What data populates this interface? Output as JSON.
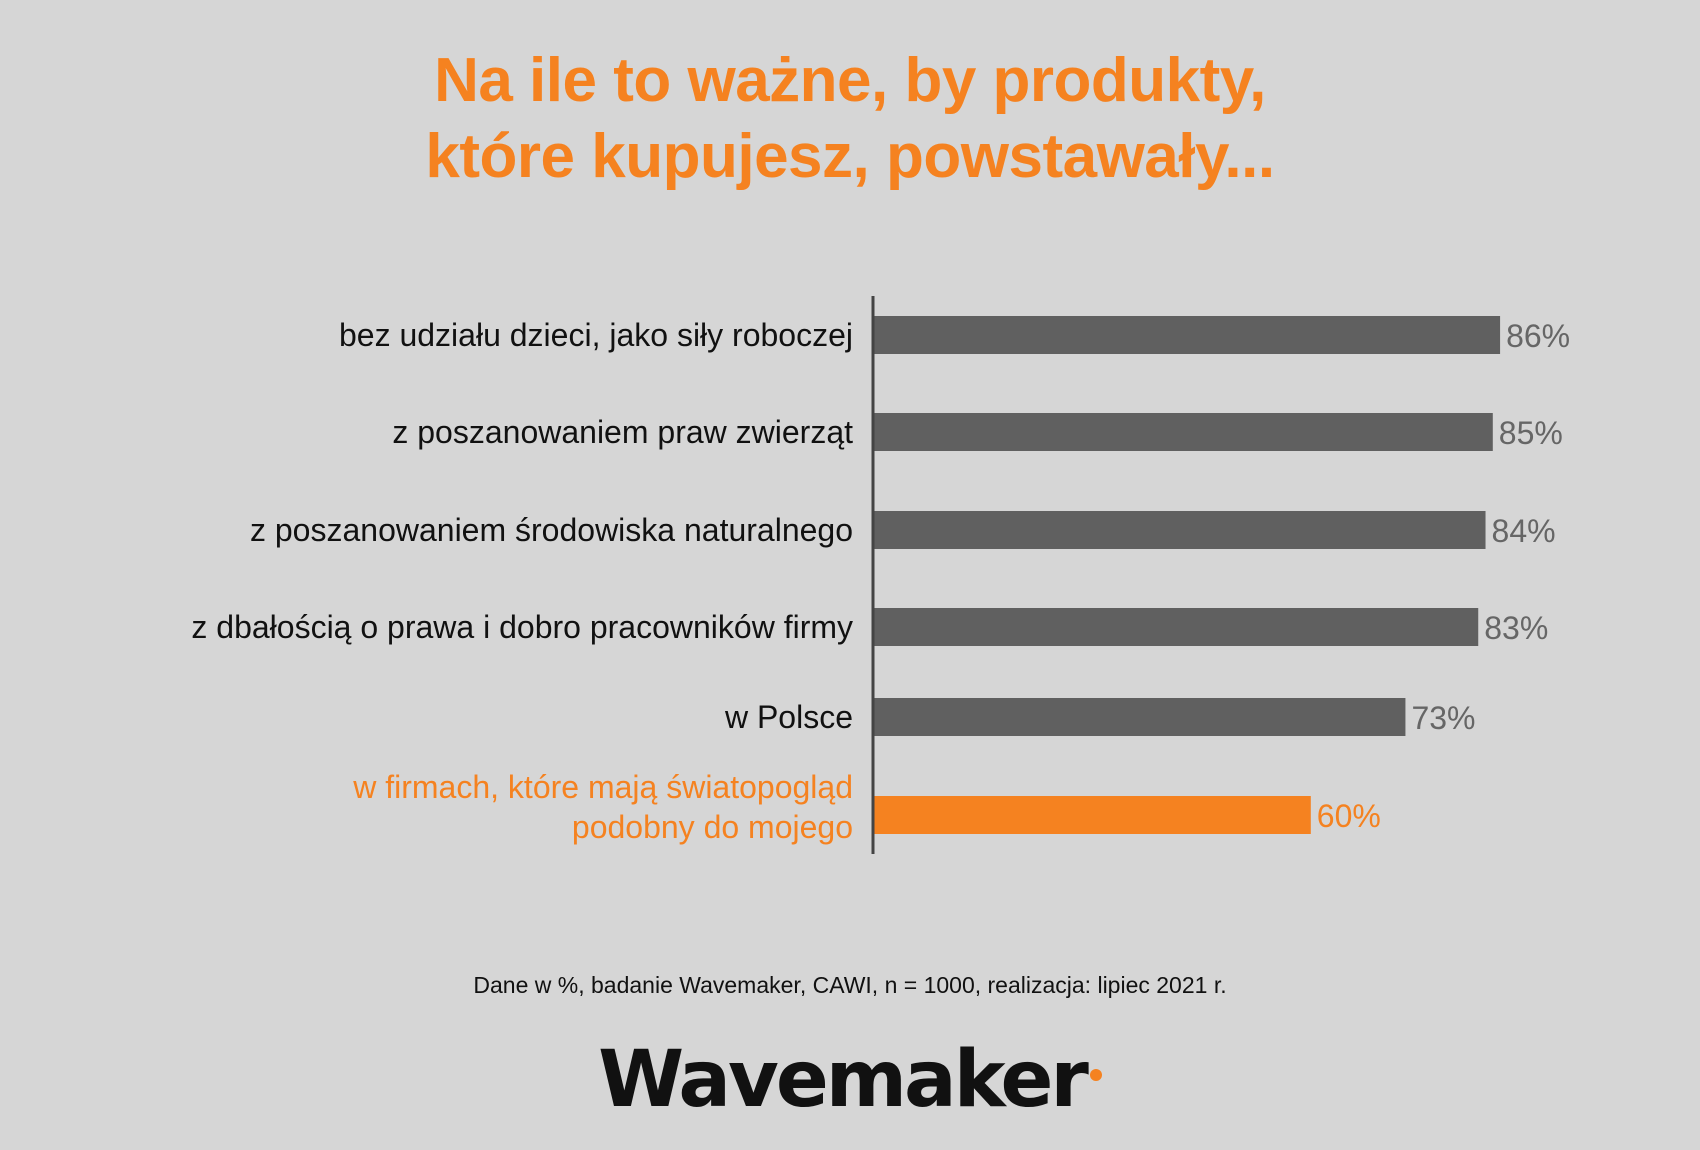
{
  "title": {
    "line1": "Na ile to ważne, by produkty,",
    "line2": "które kupujesz, powstawały..."
  },
  "chart_data": {
    "type": "bar",
    "orientation": "horizontal",
    "title": "Na ile to ważne, by produkty, które kupujesz, powstawały...",
    "categories": [
      "bez udziału dzieci, jako siły roboczej",
      "z poszanowaniem praw zwierząt",
      "z poszanowaniem środowiska naturalnego",
      "z dbałością o prawa i dobro pracowników firmy",
      "w Polsce",
      "w firmach, które mają światopogląd podobny do mojego"
    ],
    "values": [
      86,
      85,
      84,
      83,
      73,
      60
    ],
    "value_labels": [
      "86%",
      "85%",
      "84%",
      "83%",
      "73%",
      "60%"
    ],
    "unit": "%",
    "highlight_index": 5,
    "grid": false,
    "legend": "none",
    "colors": {
      "bar": "#606060",
      "highlight": "#f58220",
      "label": "#111111",
      "value_label": "#666666",
      "axis": "#444444"
    }
  },
  "footnote": "Dane w %, badanie Wavemaker, CAWI, n = 1000, realizacja: lipiec 2021 r.",
  "logo": {
    "text": "Wavemaker",
    "accent_color": "#f58220"
  }
}
